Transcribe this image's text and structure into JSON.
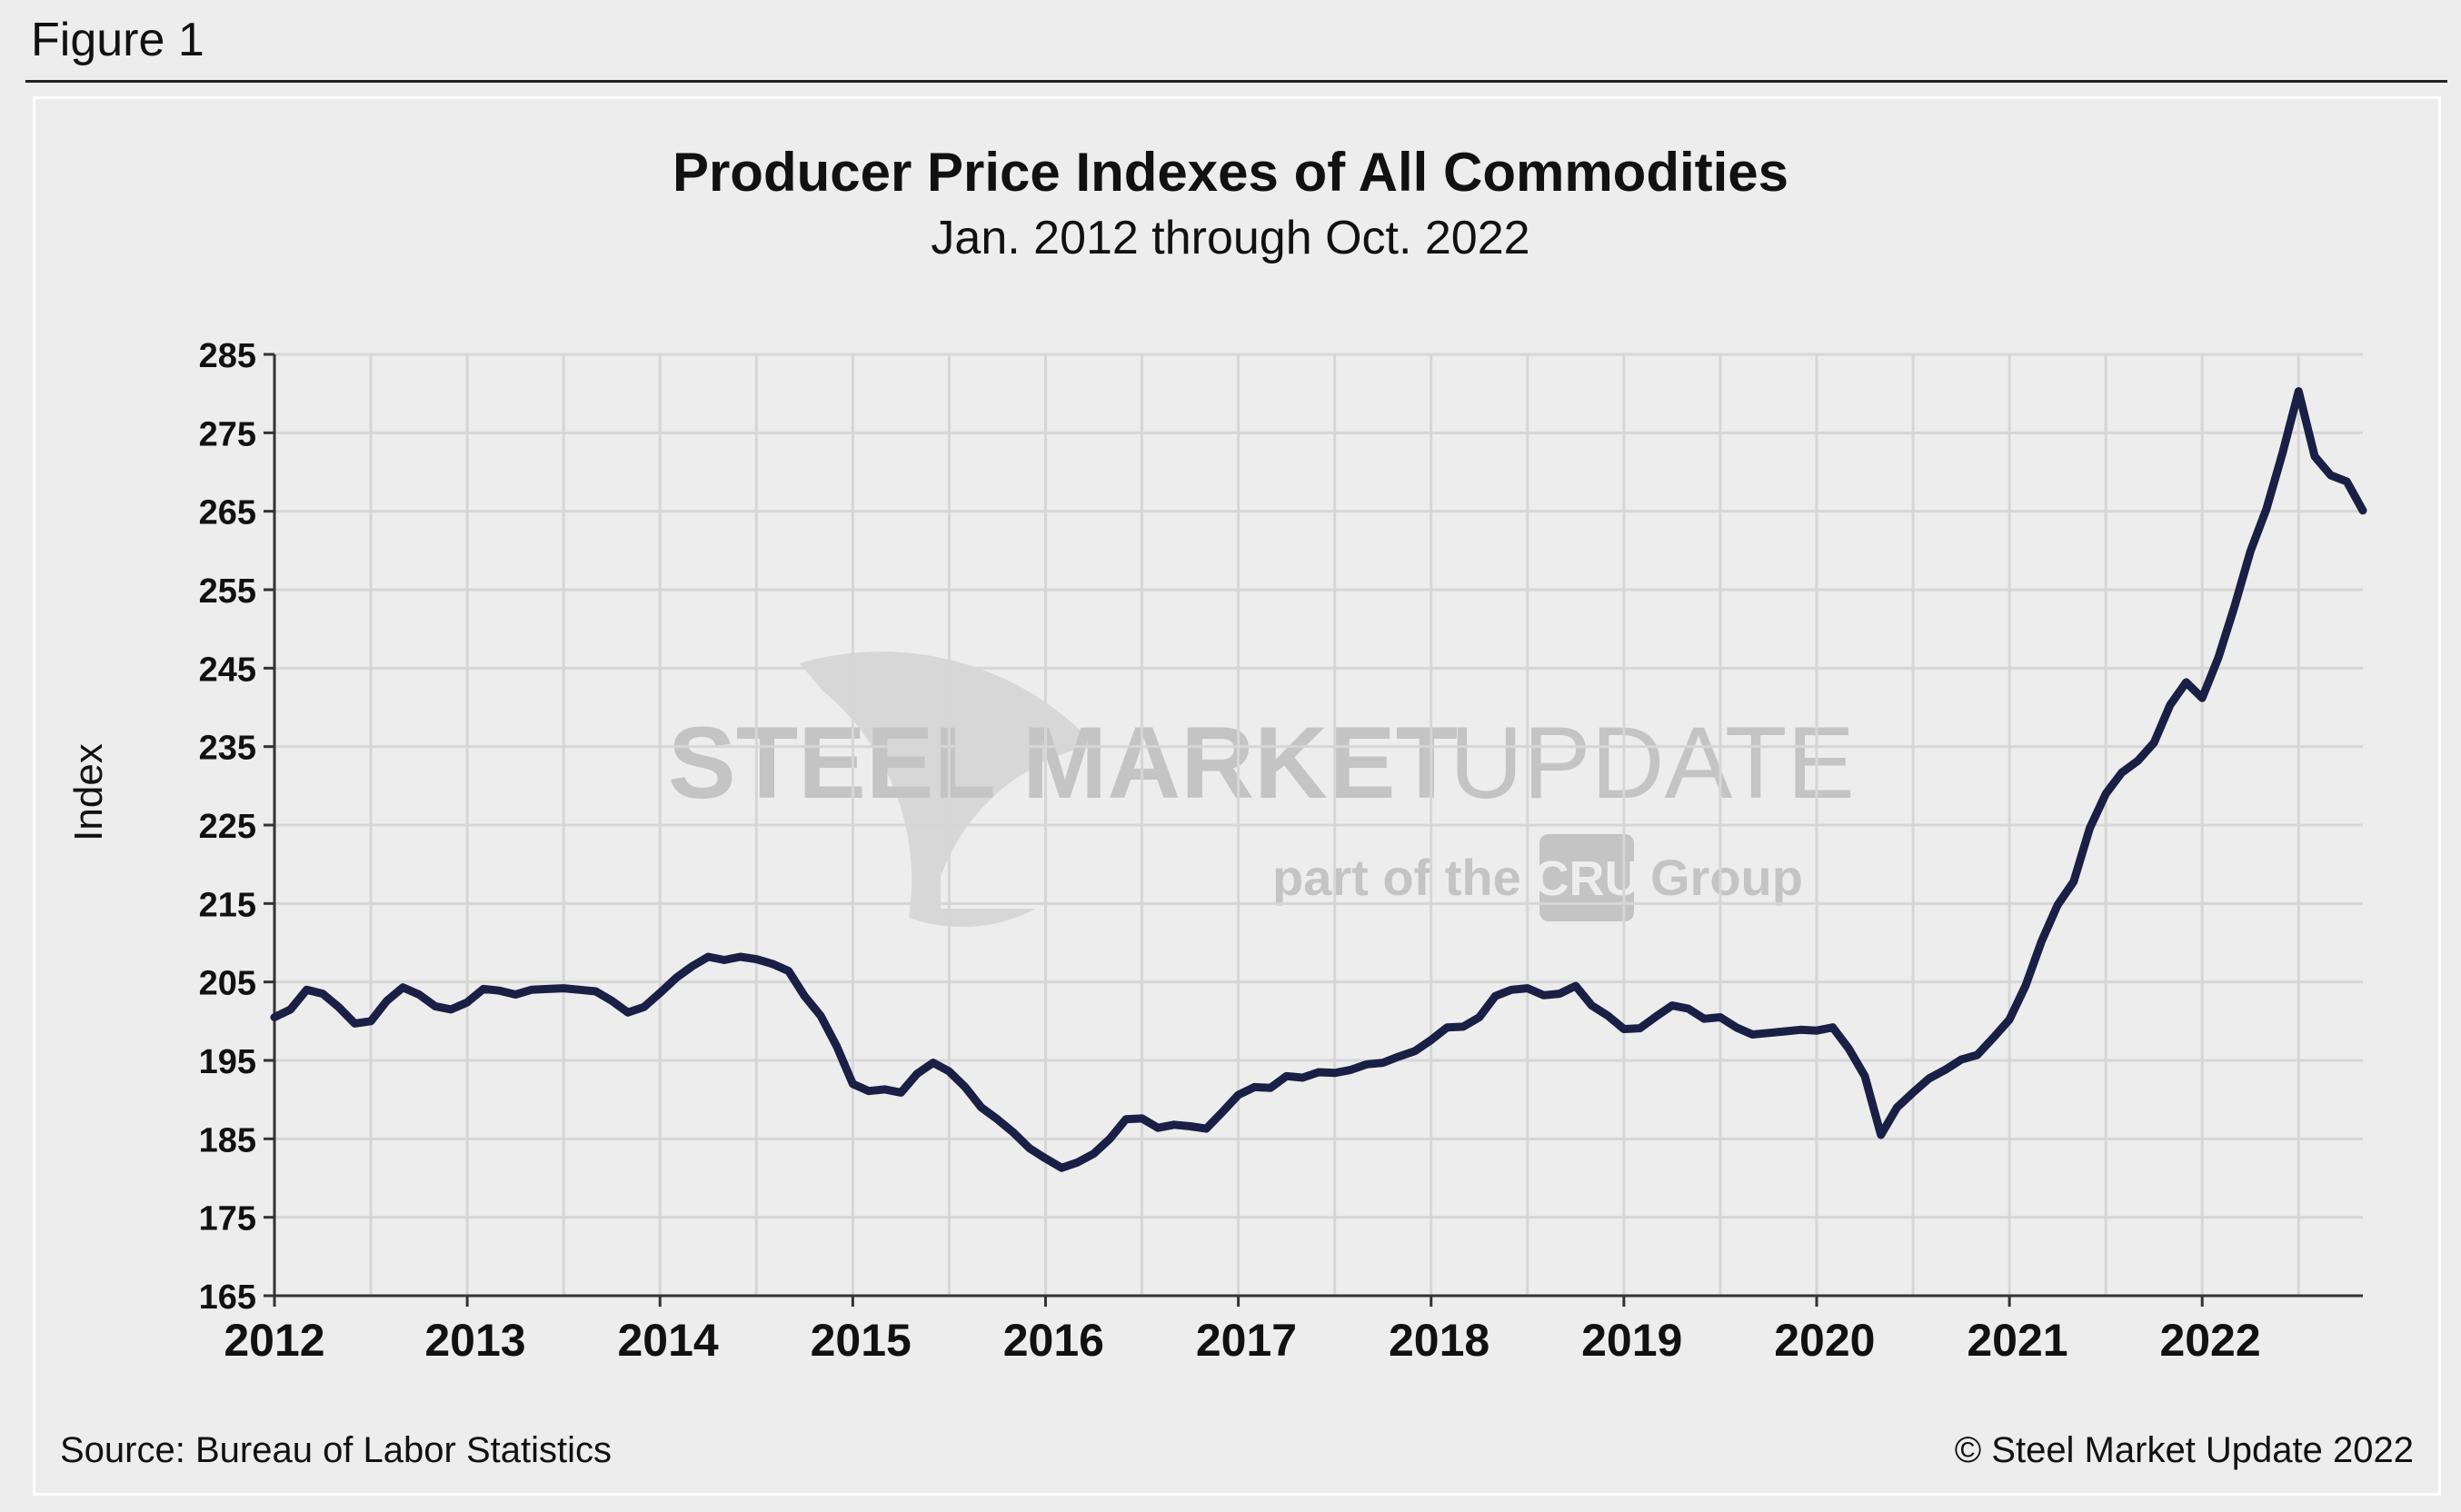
{
  "figure_label": "Figure 1",
  "source": "Source: Bureau of Labor Statistics",
  "copyright": "© Steel Market Update 2022",
  "watermark": {
    "brand_bold": "STEEL MARKET",
    "brand_light": "UPDATE",
    "tagline_prefix": "part of the",
    "tagline_logo": "CRU",
    "tagline_suffix": "Group"
  },
  "colors": {
    "line": "#1a1f45",
    "grid": "#d6d6d6",
    "axis": "#333333",
    "watermark": "#c4c4c4"
  },
  "chart_data": {
    "type": "line",
    "title": "Producer Price Indexes of All Commodities",
    "subtitle": "Jan. 2012 through Oct. 2022",
    "xlabel": "",
    "ylabel": "Index",
    "ylim": [
      165,
      285
    ],
    "yticks": [
      165,
      175,
      185,
      195,
      205,
      215,
      225,
      235,
      245,
      255,
      265,
      275,
      285
    ],
    "year_labels": [
      "2012",
      "2013",
      "2014",
      "2015",
      "2016",
      "2017",
      "2018",
      "2019",
      "2020",
      "2021",
      "2022"
    ],
    "x_start": "2012-01",
    "x_end": "2022-10",
    "grid": true,
    "series": [
      {
        "name": "PPI All Commodities",
        "values": [
          200.5,
          201.5,
          204.0,
          203.5,
          201.8,
          199.7,
          200.0,
          202.6,
          204.3,
          203.4,
          201.9,
          201.5,
          202.4,
          204.1,
          203.9,
          203.4,
          204.0,
          204.1,
          204.2,
          204.0,
          203.8,
          202.6,
          201.1,
          201.8,
          203.6,
          205.5,
          207.0,
          208.2,
          207.8,
          208.2,
          207.9,
          207.3,
          206.4,
          203.2,
          200.7,
          196.8,
          192.0,
          191.1,
          191.3,
          190.9,
          193.3,
          194.7,
          193.6,
          191.6,
          189.0,
          187.5,
          185.8,
          183.8,
          182.5,
          181.3,
          182.0,
          183.1,
          185.0,
          187.5,
          187.6,
          186.4,
          186.8,
          186.6,
          186.3,
          188.4,
          190.6,
          191.6,
          191.5,
          193.0,
          192.8,
          193.5,
          193.4,
          193.8,
          194.5,
          194.7,
          195.5,
          196.2,
          197.6,
          199.2,
          199.3,
          200.5,
          203.2,
          204.0,
          204.2,
          203.3,
          203.5,
          204.5,
          202.0,
          200.7,
          199.0,
          199.1,
          200.6,
          202.0,
          201.6,
          200.3,
          200.5,
          199.2,
          198.3,
          198.5,
          198.7,
          198.9,
          198.8,
          199.2,
          196.5,
          193.0,
          185.5,
          189.0,
          190.9,
          192.7,
          193.8,
          195.1,
          195.7,
          197.9,
          200.2,
          204.5,
          210.2,
          214.8,
          217.8,
          224.6,
          229.0,
          231.7,
          233.2,
          235.5,
          240.3,
          243.2,
          241.2,
          246.3,
          252.8,
          259.9,
          265.3,
          272.4,
          280.3,
          272.0,
          269.6,
          268.8,
          265.1
        ]
      }
    ]
  }
}
